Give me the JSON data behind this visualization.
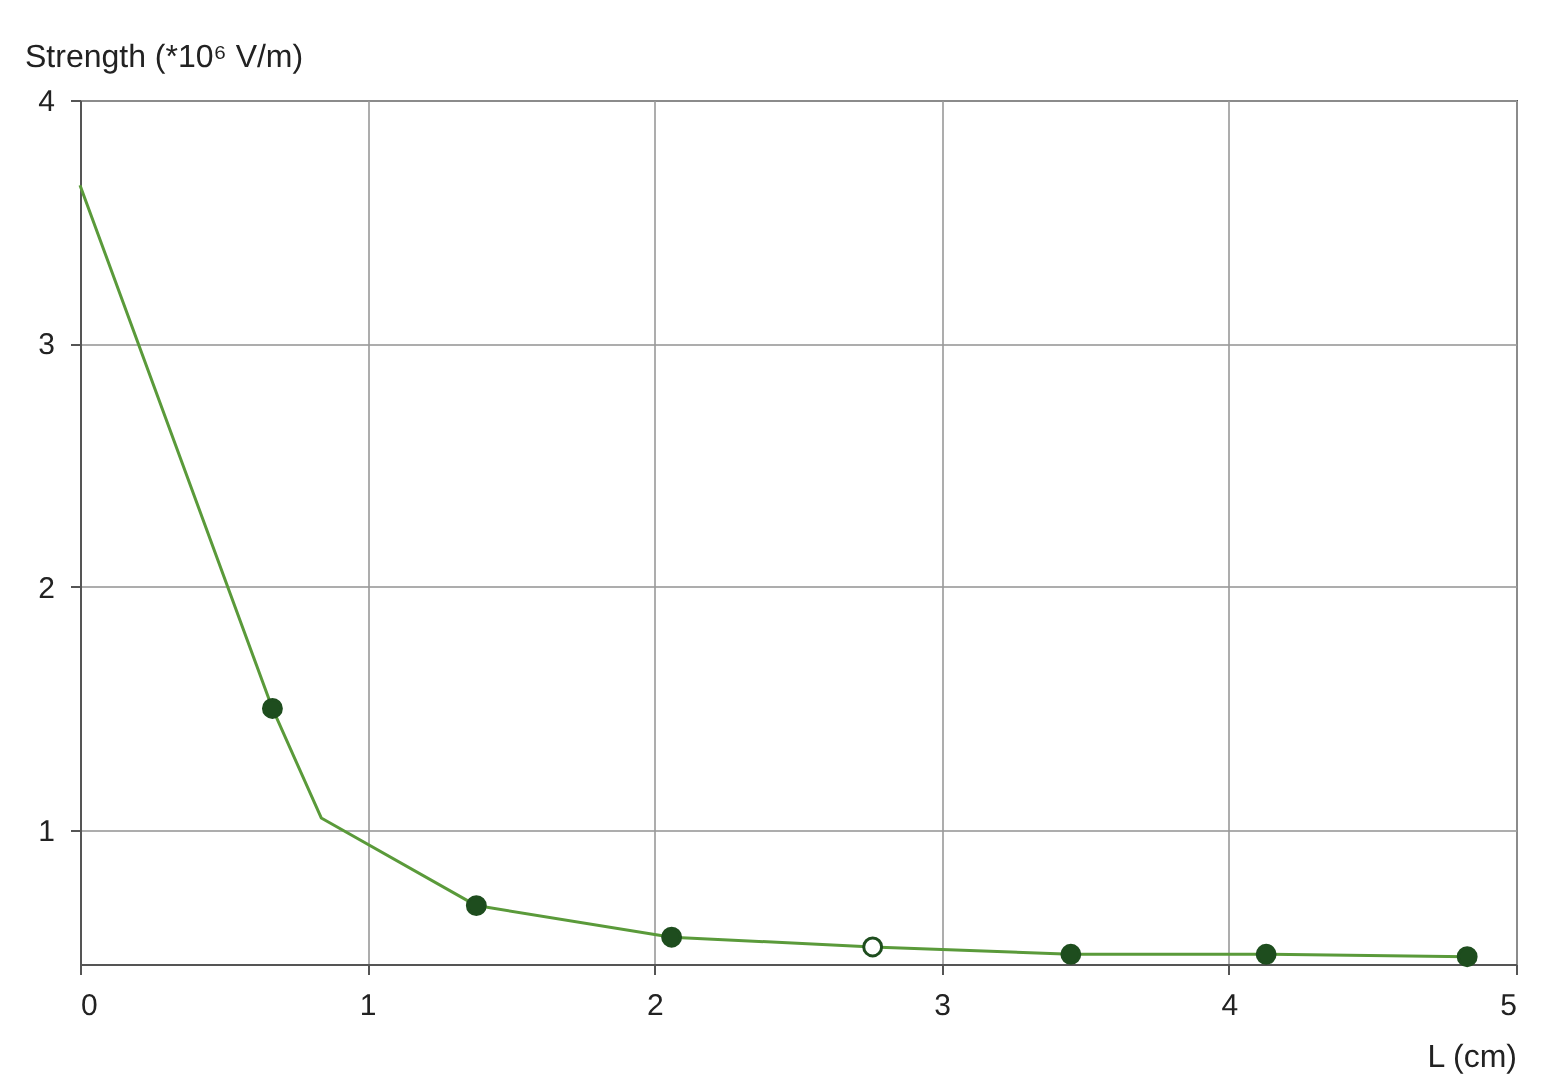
{
  "chart_data": {
    "type": "line",
    "xlabel": "L (cm)",
    "ylabel": "Strength (*10⁶ V/m)",
    "xlim": [
      0,
      5
    ],
    "xticks": [
      0,
      1,
      2,
      3,
      4,
      5
    ],
    "ylim": [
      0.45,
      4
    ],
    "yticks": [
      1,
      2,
      3,
      4
    ],
    "grid": true,
    "series": [
      {
        "type": "line",
        "color": "#5a9a3a",
        "marker": "none",
        "x": [
          0,
          0.67,
          0.84,
          1.38,
          2.06,
          2.76,
          3.45,
          4.13,
          4.83
        ],
        "values": [
          3.65,
          1.5,
          1.05,
          0.69,
          0.56,
          0.52,
          0.49,
          0.49,
          0.48
        ]
      },
      {
        "type": "scatter",
        "color": "#1e4d1e",
        "marker": "circle",
        "x": [
          0.67,
          1.38,
          2.06,
          2.76,
          3.45,
          4.13,
          4.83
        ],
        "values": [
          1.5,
          0.69,
          0.56,
          0.52,
          0.49,
          0.49,
          0.48
        ],
        "colors": [
          "#1e4d1e",
          "#1e4d1e",
          "#1e4d1e",
          "#ffffff",
          "#1e4d1e",
          "#1e4d1e",
          "#1e4d1e"
        ]
      }
    ]
  }
}
